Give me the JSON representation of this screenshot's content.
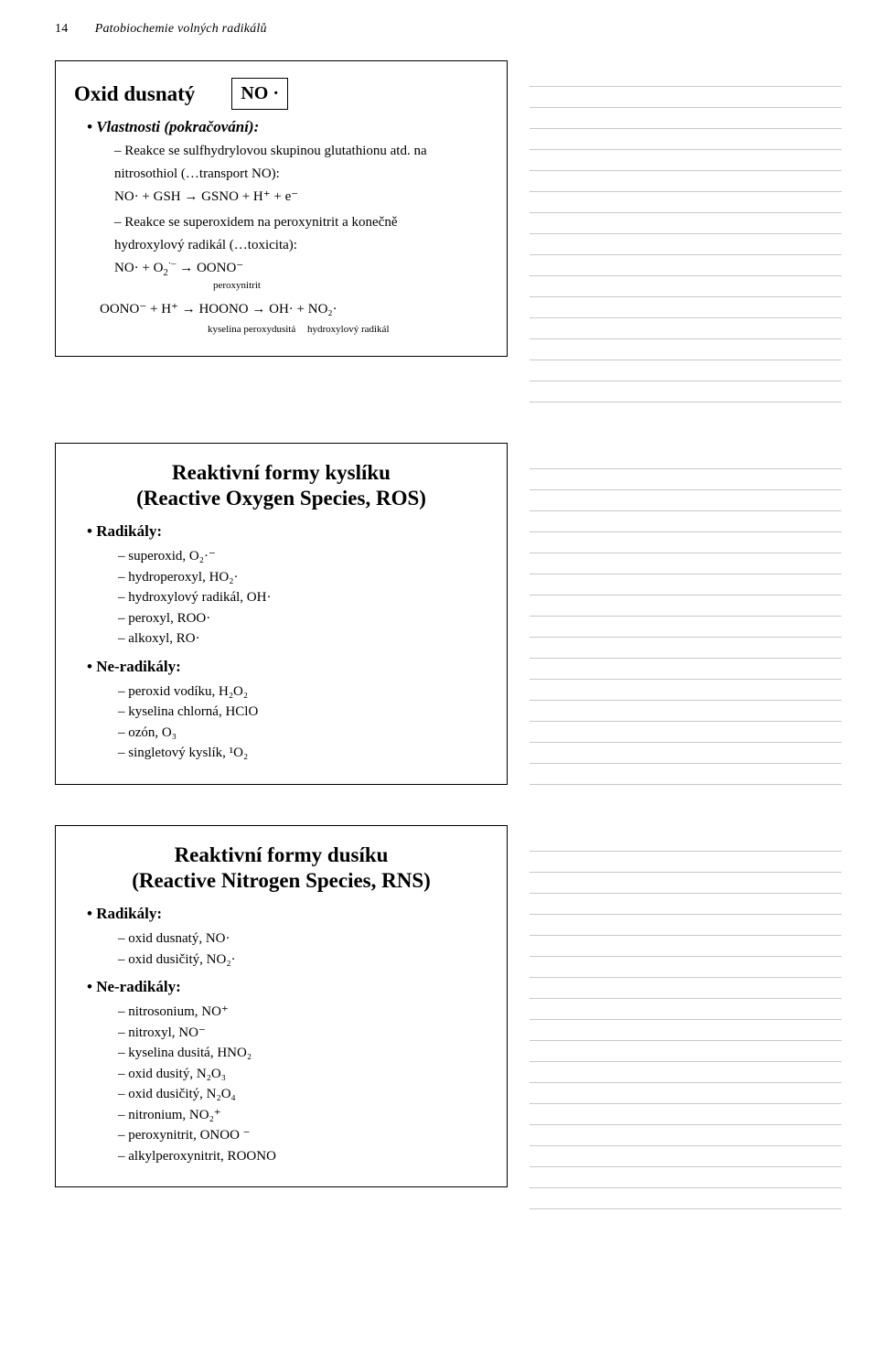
{
  "header": {
    "page_num": "14",
    "running_title": "Patobiochemie volných radikálů"
  },
  "section1": {
    "title_left": "Oxid dusnatý",
    "no_symbol": "NO ·",
    "bullet_heading": "•  Vlastnosti (pokračování):",
    "item1_line1": "Reakce se sulfhydrylovou skupinou glutathionu atd. na",
    "item1_line2": "nitrosothiol (…transport NO):",
    "formula1": "NO·  +  GSH  →  GSNO  + H⁺  +  e⁻",
    "item2_line1": "Reakce se superoxidem na peroxynitrit a konečně",
    "item2_line2": "hydroxylový radikál (…toxicita):",
    "formula2_pre": "NO·  + O",
    "formula2_post": "  →  OONO⁻",
    "formula2_label": "peroxynitrit",
    "formula3": "OONO⁻  + H⁺  →  HOONO  →      OH·   +   NO₂·",
    "formula3_label1": "kyselina peroxydusitá",
    "formula3_label2": "hydroxylový radikál"
  },
  "section2": {
    "title_l1": "Reaktivní formy kyslíku",
    "title_l2": "(Reactive Oxygen Species, ROS)",
    "bullet1": "•  Radikály:",
    "r1": "superoxid, O₂·⁻",
    "r2": "hydroperoxyl, HO₂·",
    "r3": "hydroxylový radikál, OH·",
    "r4": "peroxyl, ROO·",
    "r5": "alkoxyl, RO·",
    "bullet2": "•  Ne-radikály:",
    "n1": "peroxid vodíku, H₂O₂",
    "n2": "kyselina chlorná, HClO",
    "n3": "ozón, O₃",
    "n4": "singletový kyslík, ¹O₂"
  },
  "section3": {
    "title_l1": "Reaktivní formy dusíku",
    "title_l2": "(Reactive Nitrogen Species, RNS)",
    "bullet1": "•  Radikály:",
    "r1": "oxid dusnatý, NO·",
    "r2": "oxid dusičitý, NO₂·",
    "bullet2": "•  Ne-radikály:",
    "n1": "nitrosonium, NO⁺",
    "n2": "nitroxyl, NO⁻",
    "n3": "kyselina dusitá, HNO₂",
    "n4": "oxid dusitý, N₂O₃",
    "n5": "oxid dusičitý, N₂O₄",
    "n6": "nitronium, NO₂⁺",
    "n7": "peroxynitrit, ONOO ⁻",
    "n8": "alkylperoxynitrit, ROONO"
  },
  "layout": {
    "note_lines_s1": 16,
    "note_lines_s2": 16,
    "note_lines_s3": 18
  }
}
